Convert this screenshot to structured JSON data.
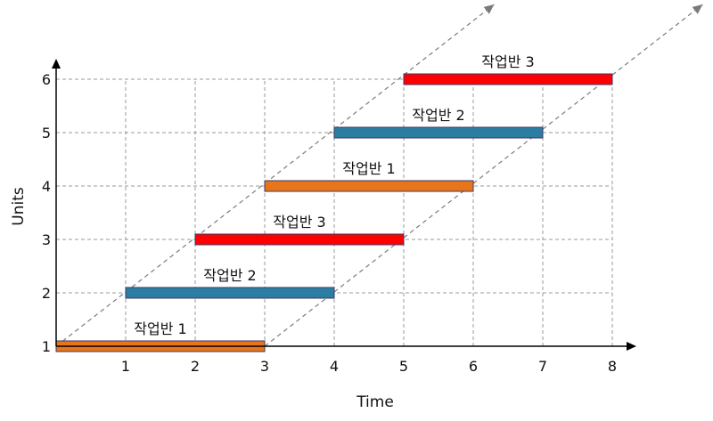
{
  "chart_data": {
    "type": "bar",
    "orientation": "gantt",
    "title": "",
    "xlabel": "Time",
    "ylabel": "Units",
    "xlim": [
      0,
      8
    ],
    "ylim": [
      1,
      6
    ],
    "x_ticks": [
      "1",
      "2",
      "3",
      "4",
      "5",
      "6",
      "7",
      "8"
    ],
    "y_ticks": [
      "1",
      "2",
      "3",
      "4",
      "5",
      "6"
    ],
    "grid": true,
    "bars": [
      {
        "unit": 1,
        "start": 0,
        "end": 3,
        "label": "작업반 1",
        "color": "#e8751a"
      },
      {
        "unit": 2,
        "start": 1,
        "end": 4,
        "label": "작업반 2",
        "color": "#2b7ea1"
      },
      {
        "unit": 3,
        "start": 2,
        "end": 5,
        "label": "작업반 3",
        "color": "#ff0000"
      },
      {
        "unit": 4,
        "start": 3,
        "end": 6,
        "label": "작업반 1",
        "color": "#e8751a"
      },
      {
        "unit": 5,
        "start": 4,
        "end": 7,
        "label": "작업반 2",
        "color": "#2b7ea1"
      },
      {
        "unit": 6,
        "start": 5,
        "end": 8,
        "label": "작업반 3",
        "color": "#ff0000"
      }
    ],
    "diagonals": [
      {
        "from": [
          0,
          1
        ],
        "to": [
          6.3,
          7.4
        ]
      },
      {
        "from": [
          3,
          1
        ],
        "to": [
          9.3,
          7.4
        ]
      }
    ]
  }
}
